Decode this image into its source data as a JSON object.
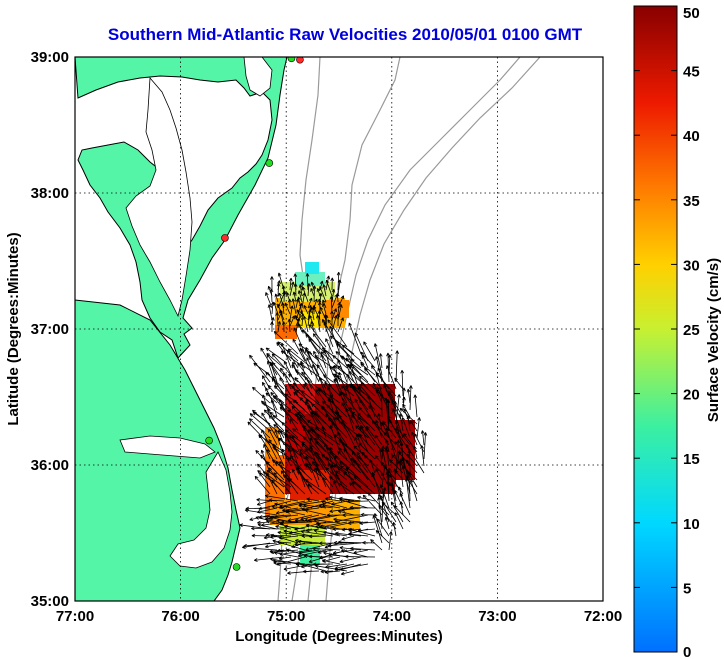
{
  "title": "Southern Mid-Atlantic Raw Velocities 2010/05/01 0100 GMT",
  "map": {
    "xlabel": "Longitude (Degrees:Minutes)",
    "ylabel": "Latitude (Degrees:Minutes)",
    "lon_range": [
      -77,
      -72
    ],
    "lat_range": [
      35,
      39
    ],
    "lon_ticks": [
      "77:00",
      "76:00",
      "75:00",
      "74:00",
      "73:00",
      "72:00"
    ],
    "lat_ticks": [
      "39:00",
      "38:00",
      "37:00",
      "36:00",
      "35:00"
    ],
    "grid": "dotted",
    "land_color": "#55f5a8",
    "coast_color": "#000000",
    "bathymetry_color": "#9a9a9a"
  },
  "colorbar": {
    "label": "Surface Velocity (cm/s)",
    "range": [
      0,
      50
    ],
    "ticks": [
      "50",
      "45",
      "40",
      "35",
      "30",
      "25",
      "20",
      "15",
      "10",
      "5",
      "0"
    ],
    "colormap": "jet"
  },
  "stations": [
    {
      "lon": -74.87,
      "lat": 38.98,
      "color": "#ff2a2a"
    },
    {
      "lon": -74.95,
      "lat": 38.99,
      "color": "#22dd22"
    },
    {
      "lon": -75.16,
      "lat": 38.22,
      "color": "#22dd22"
    },
    {
      "lon": -75.58,
      "lat": 37.67,
      "color": "#ff2a2a"
    },
    {
      "lon": -75.73,
      "lat": 36.18,
      "color": "#22dd22"
    },
    {
      "lon": -75.47,
      "lat": 35.25,
      "color": "#22dd22"
    }
  ]
}
